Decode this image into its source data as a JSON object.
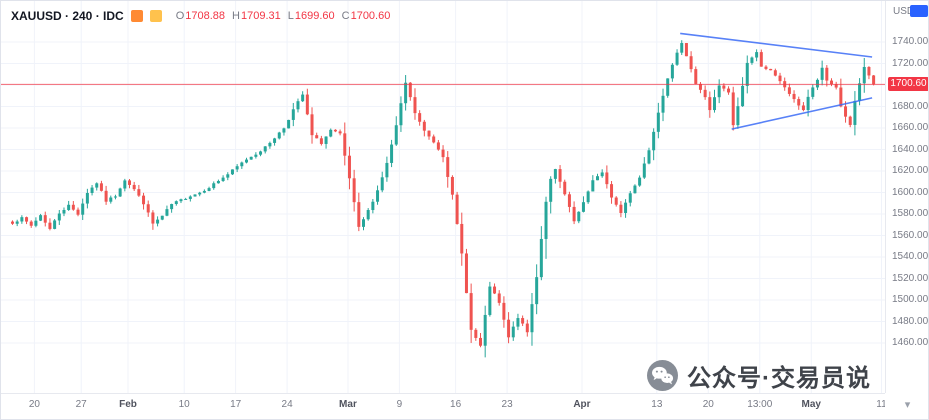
{
  "legend": {
    "symbol_title": "XAUUSD · 240 · IDC",
    "ohlc": [
      {
        "label": "O",
        "value": "1708.88"
      },
      {
        "label": "H",
        "value": "1709.31"
      },
      {
        "label": "L",
        "value": "1699.60"
      },
      {
        "label": "C",
        "value": "1700.60"
      }
    ]
  },
  "price_axis": {
    "currency": "USD",
    "last_price_tag": "1700.60"
  },
  "watermark": {
    "text": "公众号·交易员说"
  },
  "chart_data": {
    "type": "candlestick",
    "title": "XAUUSD · 240 · IDC",
    "last": {
      "open": 1708.88,
      "high": 1709.31,
      "low": 1699.6,
      "close": 1700.6
    },
    "y_axis": {
      "min": 1460,
      "max": 1740,
      "step": 20,
      "unit": "USD"
    },
    "price_ticks": [
      "1740.00",
      "1720.00",
      "1700.00",
      "1680.00",
      "1660.00",
      "1640.00",
      "1620.00",
      "1600.00",
      "1580.00",
      "1560.00",
      "1540.00",
      "1520.00",
      "1500.00",
      "1480.00",
      "1460.00"
    ],
    "time_labels": [
      [
        "20",
        5
      ],
      [
        "27",
        15
      ],
      [
        "Feb",
        25
      ],
      [
        "10",
        37
      ],
      [
        "17",
        48
      ],
      [
        "24",
        59
      ],
      [
        "Mar",
        72
      ],
      [
        "9",
        83
      ],
      [
        "16",
        95
      ],
      [
        "23",
        106
      ],
      [
        "Apr",
        122
      ],
      [
        "13",
        138
      ],
      [
        "20",
        149
      ],
      [
        "13:00",
        160
      ],
      [
        "May",
        171
      ],
      [
        "11",
        186
      ]
    ],
    "candle_count": 185,
    "close_waypoints": [
      [
        0,
        1572
      ],
      [
        2,
        1576
      ],
      [
        4,
        1569
      ],
      [
        6,
        1579
      ],
      [
        8,
        1566
      ],
      [
        10,
        1581
      ],
      [
        12,
        1588
      ],
      [
        14,
        1580
      ],
      [
        16,
        1600
      ],
      [
        18,
        1609
      ],
      [
        20,
        1592
      ],
      [
        22,
        1597
      ],
      [
        24,
        1612
      ],
      [
        26,
        1603
      ],
      [
        28,
        1590
      ],
      [
        30,
        1571
      ],
      [
        32,
        1578
      ],
      [
        34,
        1589
      ],
      [
        36,
        1593
      ],
      [
        38,
        1597
      ],
      [
        40,
        1600
      ],
      [
        42,
        1605
      ],
      [
        44,
        1611
      ],
      [
        46,
        1617
      ],
      [
        48,
        1624
      ],
      [
        50,
        1631
      ],
      [
        52,
        1636
      ],
      [
        54,
        1642
      ],
      [
        56,
        1651
      ],
      [
        58,
        1660
      ],
      [
        60,
        1677
      ],
      [
        62,
        1691
      ],
      [
        64,
        1653
      ],
      [
        66,
        1646
      ],
      [
        68,
        1658
      ],
      [
        70,
        1654
      ],
      [
        72,
        1613
      ],
      [
        74,
        1567
      ],
      [
        76,
        1583
      ],
      [
        78,
        1602
      ],
      [
        80,
        1627
      ],
      [
        82,
        1662
      ],
      [
        84,
        1702
      ],
      [
        86,
        1674
      ],
      [
        88,
        1657
      ],
      [
        90,
        1647
      ],
      [
        92,
        1634
      ],
      [
        94,
        1597
      ],
      [
        96,
        1543
      ],
      [
        98,
        1472
      ],
      [
        100,
        1457
      ],
      [
        102,
        1513
      ],
      [
        104,
        1497
      ],
      [
        106,
        1465
      ],
      [
        108,
        1484
      ],
      [
        110,
        1470
      ],
      [
        112,
        1522
      ],
      [
        113,
        1557
      ],
      [
        114,
        1592
      ],
      [
        115,
        1612
      ],
      [
        116,
        1621
      ],
      [
        118,
        1598
      ],
      [
        120,
        1573
      ],
      [
        122,
        1590
      ],
      [
        124,
        1612
      ],
      [
        126,
        1618
      ],
      [
        128,
        1596
      ],
      [
        130,
        1581
      ],
      [
        132,
        1600
      ],
      [
        134,
        1614
      ],
      [
        136,
        1640
      ],
      [
        138,
        1675
      ],
      [
        140,
        1707
      ],
      [
        142,
        1729
      ],
      [
        143,
        1740
      ],
      [
        145,
        1715
      ],
      [
        146,
        1701
      ],
      [
        148,
        1689
      ],
      [
        149,
        1677
      ],
      [
        151,
        1699
      ],
      [
        153,
        1693
      ],
      [
        154,
        1662
      ],
      [
        156,
        1699
      ],
      [
        157,
        1721
      ],
      [
        159,
        1730
      ],
      [
        160,
        1718
      ],
      [
        162,
        1713
      ],
      [
        164,
        1703
      ],
      [
        165,
        1698
      ],
      [
        167,
        1686
      ],
      [
        169,
        1677
      ],
      [
        170,
        1689
      ],
      [
        172,
        1705
      ],
      [
        173,
        1715
      ],
      [
        174,
        1704
      ],
      [
        176,
        1698
      ],
      [
        177,
        1680
      ],
      [
        179,
        1662
      ],
      [
        180,
        1685
      ],
      [
        182,
        1716
      ],
      [
        183,
        1708.88
      ],
      [
        184,
        1700.6
      ]
    ],
    "last_price_line": 1700.6,
    "trendlines": [
      {
        "from": [
          143,
          1748
        ],
        "to": [
          184,
          1726
        ]
      },
      {
        "from": [
          154,
          1659
        ],
        "to": [
          184,
          1688
        ]
      }
    ],
    "colors": {
      "up": "#26a69a",
      "down": "#ef5350",
      "grid": "#f0f3fa",
      "last_price": "#f23645",
      "trendline": "#3b6cf6"
    }
  }
}
